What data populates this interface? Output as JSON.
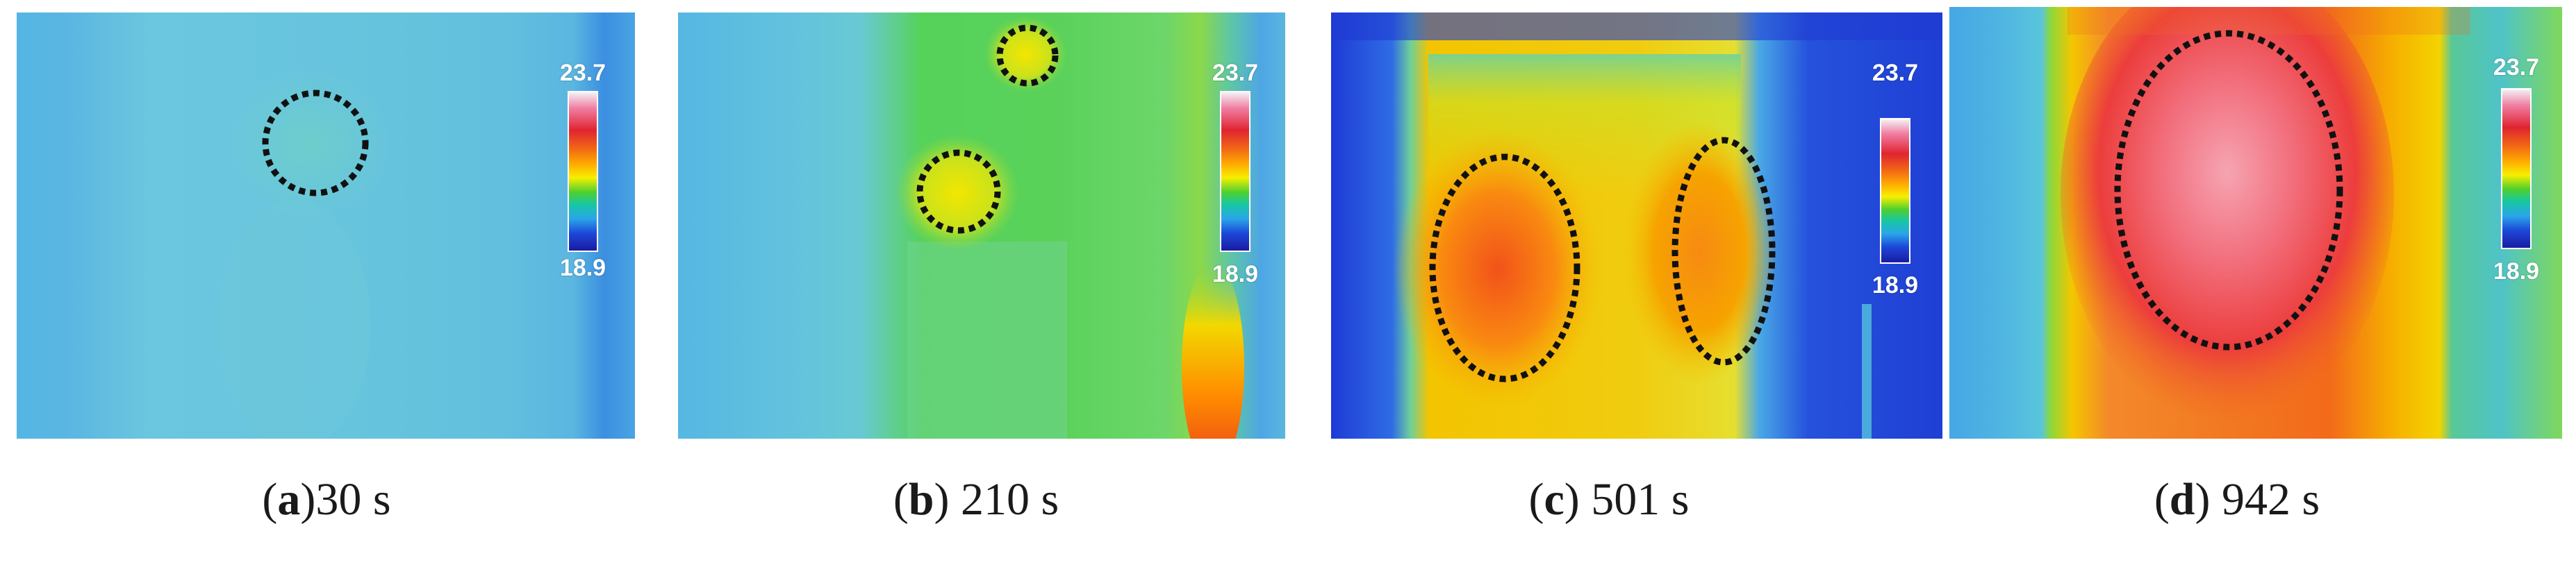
{
  "colors": {
    "scale_high": "#e02430",
    "scale_low": "#1a1aa3",
    "marker": "#111111"
  },
  "panels": [
    {
      "letter": "a",
      "time": "30 s",
      "scale_max": "23.7",
      "scale_min": "18.9"
    },
    {
      "letter": "b",
      "time": "210 s",
      "scale_max": "23.7",
      "scale_min": "18.9"
    },
    {
      "letter": "c",
      "time": "501 s",
      "scale_max": "23.7",
      "scale_min": "18.9"
    },
    {
      "letter": "d",
      "time": "942 s",
      "scale_max": "23.7",
      "scale_min": "18.9"
    }
  ]
}
